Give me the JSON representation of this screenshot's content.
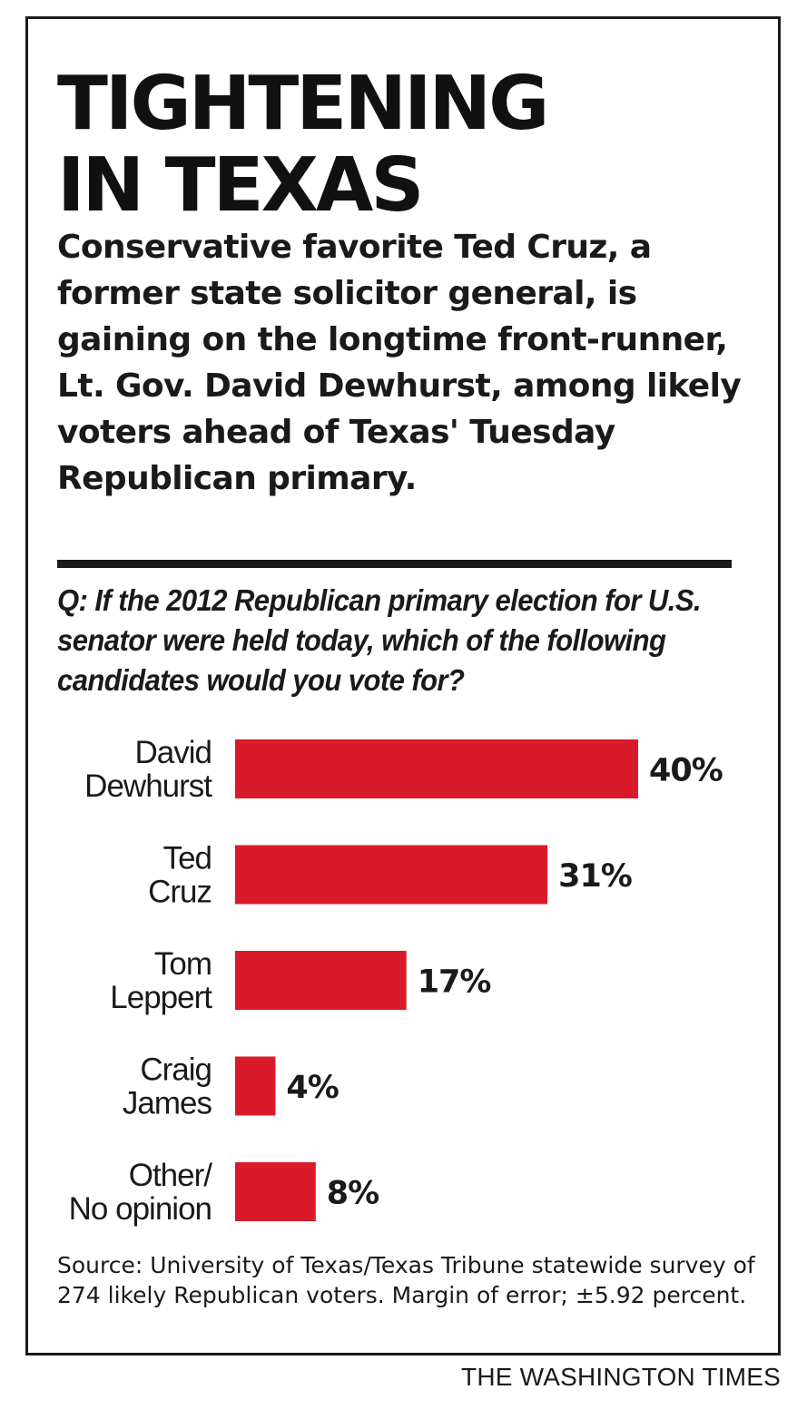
{
  "headline_lines": [
    "TIGHTENING",
    "IN TEXAS"
  ],
  "subhead": "Conservative favorite Ted Cruz, a former state solicitor general, is gaining on the longtime front-runner, Lt. Gov. David Dewhurst, among likely voters ahead of Texas' Tuesday Republican primary.",
  "question": "Q: If the 2012 Republican primary election for U.S. senator were held today, which of the following candidates would you vote for?",
  "source": "Source: University of Texas/Texas Tribune statewide survey of 274 likely Republican voters. Margin of error; ±5.92 percent.",
  "credit": "THE WASHINGTON TIMES",
  "colors": {
    "bar": "#d91a2a",
    "text": "#1a1a1a"
  },
  "chart_data": {
    "type": "bar",
    "orientation": "horizontal",
    "categories": [
      [
        "David",
        "Dewhurst"
      ],
      [
        "Ted",
        "Cruz"
      ],
      [
        "Tom",
        "Leppert"
      ],
      [
        "Craig",
        "James"
      ],
      [
        "Other/",
        "No opinion"
      ]
    ],
    "values": [
      40,
      31,
      17,
      4,
      8
    ],
    "value_labels": [
      "40%",
      "31%",
      "17%",
      "4%",
      "8%"
    ],
    "unit": "%",
    "xlim": [
      0,
      40
    ],
    "grid": false,
    "legend": "none"
  }
}
